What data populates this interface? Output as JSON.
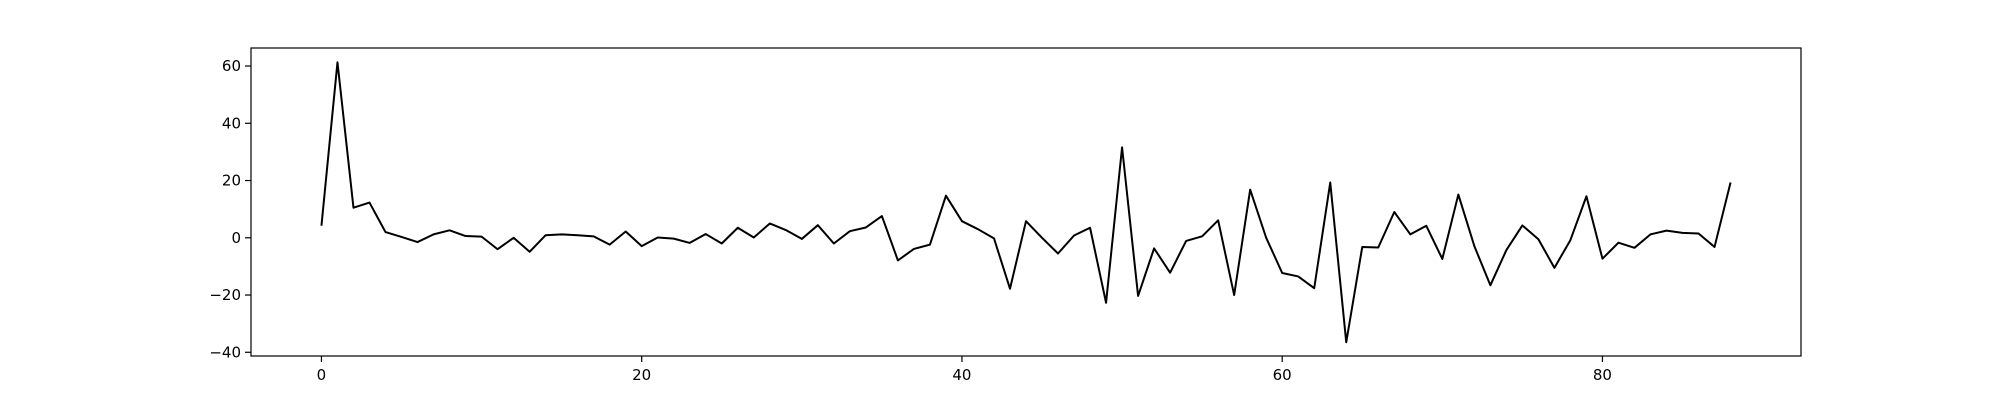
{
  "chart_data": {
    "type": "line",
    "title": "",
    "xlabel": "",
    "ylabel": "",
    "xlim": [
      -4.4,
      92.4
    ],
    "ylim": [
      -41.3,
      66.3
    ],
    "x_ticks": [
      0,
      20,
      40,
      60,
      80
    ],
    "y_ticks": [
      -40,
      -20,
      0,
      20,
      40,
      60
    ],
    "grid": false,
    "legend": "none",
    "line_color": "#000000",
    "series": [
      {
        "x": [
          0,
          1,
          2,
          3,
          4,
          5,
          6,
          7,
          8,
          9,
          10,
          11,
          12,
          13,
          14,
          15,
          16,
          17,
          18,
          19,
          20,
          21,
          22,
          23,
          24,
          25,
          26,
          27,
          28,
          29,
          30,
          31,
          32,
          33,
          34,
          35,
          36,
          37,
          38,
          39,
          40,
          41,
          42,
          43,
          44,
          45,
          46,
          47,
          48,
          49,
          50,
          51,
          52,
          53,
          54,
          55,
          56,
          57,
          58,
          59,
          60,
          61,
          62,
          63,
          64,
          65,
          66,
          67,
          68,
          69,
          70,
          71,
          72,
          73,
          74,
          75,
          76,
          77,
          78,
          79,
          80,
          81,
          82,
          83,
          84,
          85,
          86,
          87,
          88
        ],
        "values": [
          4.2,
          61.3,
          10.5,
          12.3,
          2.0,
          0.3,
          -1.5,
          1.2,
          2.6,
          0.6,
          0.4,
          -4.0,
          0.0,
          -4.9,
          0.9,
          1.2,
          0.9,
          0.5,
          -2.4,
          2.2,
          -2.9,
          0.1,
          -0.3,
          -1.8,
          1.3,
          -2.0,
          3.5,
          0.1,
          5.0,
          2.7,
          -0.4,
          4.4,
          -2.0,
          2.3,
          3.6,
          7.6,
          -7.9,
          -3.9,
          -2.4,
          14.7,
          5.8,
          3.0,
          -0.2,
          -17.8,
          5.8,
          0.0,
          -5.5,
          0.8,
          3.5,
          -22.7,
          31.6,
          -20.3,
          -3.7,
          -12.2,
          -1.1,
          0.5,
          6.1,
          -20.0,
          16.8,
          0.0,
          -12.3,
          -13.5,
          -17.6,
          19.3,
          -36.5,
          -3.2,
          -3.4,
          9.0,
          1.2,
          4.2,
          -7.4,
          15.1,
          -2.9,
          -16.6,
          -4.3,
          4.3,
          -0.5,
          -10.5,
          -0.8,
          14.5,
          -7.3,
          -1.7,
          -3.5,
          1.2,
          2.5,
          1.7,
          1.5,
          -3.2,
          19.3
        ]
      }
    ]
  }
}
